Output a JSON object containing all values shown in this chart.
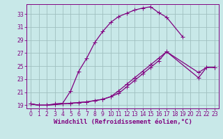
{
  "xlabel": "Windchill (Refroidissement éolien,°C)",
  "bg_color": "#c8e8e8",
  "grid_color": "#a0c0c0",
  "line_color": "#800080",
  "xlim": [
    -0.5,
    23.5
  ],
  "ylim": [
    18.5,
    34.5
  ],
  "xticks": [
    0,
    1,
    2,
    3,
    4,
    5,
    6,
    7,
    8,
    9,
    10,
    11,
    12,
    13,
    14,
    15,
    16,
    17,
    18,
    19,
    20,
    21,
    22,
    23
  ],
  "yticks": [
    19,
    21,
    23,
    25,
    27,
    29,
    31,
    33
  ],
  "c1x": [
    0,
    1,
    2,
    3,
    4,
    5,
    6,
    7,
    8,
    9,
    10,
    11,
    12,
    13,
    14,
    15,
    16,
    17,
    19
  ],
  "c1y": [
    19.2,
    19.0,
    19.0,
    19.2,
    19.3,
    21.2,
    24.2,
    26.2,
    28.6,
    30.3,
    31.7,
    32.6,
    33.1,
    33.6,
    33.9,
    34.1,
    33.2,
    32.5,
    29.5
  ],
  "c2x": [
    0,
    1,
    2,
    3,
    4,
    5,
    6,
    7,
    8,
    9,
    10,
    11,
    12,
    13,
    14,
    15,
    16,
    17,
    21,
    22,
    23
  ],
  "c2y": [
    19.2,
    19.0,
    19.0,
    19.1,
    19.2,
    19.3,
    19.4,
    19.5,
    19.7,
    19.9,
    20.3,
    21.2,
    22.2,
    23.2,
    24.2,
    25.2,
    26.2,
    27.2,
    23.2,
    24.8,
    24.8
  ],
  "c3x": [
    0,
    1,
    2,
    3,
    4,
    5,
    6,
    7,
    8,
    9,
    10,
    11,
    12,
    13,
    14,
    15,
    16,
    17,
    21,
    22,
    23
  ],
  "c3y": [
    19.2,
    19.0,
    19.0,
    19.1,
    19.2,
    19.3,
    19.4,
    19.5,
    19.7,
    19.9,
    20.3,
    20.8,
    21.8,
    22.8,
    23.8,
    24.8,
    25.8,
    27.2,
    24.0,
    24.8,
    24.8
  ],
  "marker": "+",
  "marker_size": 4,
  "lw": 0.9,
  "font_size_label": 6.5,
  "font_size_tick": 5.5
}
